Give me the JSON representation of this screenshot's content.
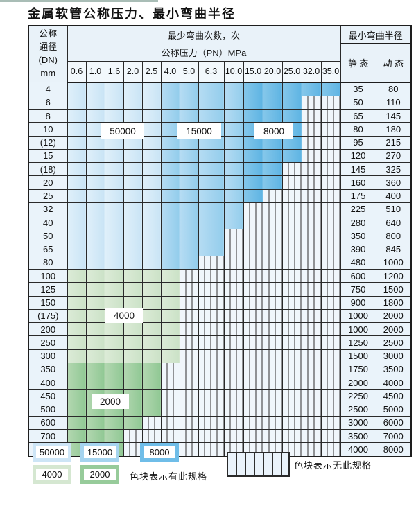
{
  "title": "金属软管公称压力、最小弯曲半径",
  "table": {
    "corner_header": "公称\n通径\n(DN)\nmm",
    "bend_cycles_header": "最少弯曲次数，次",
    "pressure_header": "公称压力（PN）MPa",
    "radius_header": "最小弯曲半径",
    "static_label": "静 态",
    "dynamic_label": "动 态",
    "pressure_columns": [
      "0.6",
      "1.0",
      "1.6",
      "2.0",
      "2.5",
      "4.0",
      "5.0",
      "6.3",
      "10.0",
      "15.0",
      "20.0",
      "25.0",
      "32.0",
      "35.0"
    ],
    "rows": [
      {
        "dn": "4",
        "last_colored": "35.0",
        "zone": "blue",
        "static": "35",
        "dynamic": "80"
      },
      {
        "dn": "6",
        "last_colored": "25.0",
        "zone": "blue",
        "static": "50",
        "dynamic": "110"
      },
      {
        "dn": "8",
        "last_colored": "25.0",
        "zone": "blue",
        "static": "65",
        "dynamic": "145"
      },
      {
        "dn": "10",
        "last_colored": "25.0",
        "zone": "blue",
        "static": "80",
        "dynamic": "180"
      },
      {
        "dn": "(12)",
        "last_colored": "25.0",
        "zone": "blue",
        "static": "95",
        "dynamic": "215"
      },
      {
        "dn": "15",
        "last_colored": "25.0",
        "zone": "blue",
        "static": "120",
        "dynamic": "270"
      },
      {
        "dn": "(18)",
        "last_colored": "20.0",
        "zone": "blue",
        "static": "145",
        "dynamic": "325"
      },
      {
        "dn": "20",
        "last_colored": "20.0",
        "zone": "blue",
        "static": "160",
        "dynamic": "360"
      },
      {
        "dn": "25",
        "last_colored": "15.0",
        "zone": "blue",
        "static": "175",
        "dynamic": "400"
      },
      {
        "dn": "32",
        "last_colored": "10.0",
        "zone": "blue",
        "static": "225",
        "dynamic": "510"
      },
      {
        "dn": "40",
        "last_colored": "10.0",
        "zone": "blue",
        "static": "280",
        "dynamic": "640"
      },
      {
        "dn": "50",
        "last_colored": "6.3",
        "zone": "blue",
        "static": "350",
        "dynamic": "800"
      },
      {
        "dn": "65",
        "last_colored": "6.3",
        "zone": "blue",
        "static": "390",
        "dynamic": "845"
      },
      {
        "dn": "80",
        "last_colored": "5.0",
        "zone": "blue",
        "static": "480",
        "dynamic": "1000"
      },
      {
        "dn": "100",
        "last_colored": "4.0",
        "zone": "green-4000",
        "static": "600",
        "dynamic": "1200"
      },
      {
        "dn": "125",
        "last_colored": "4.0",
        "zone": "green-4000",
        "static": "750",
        "dynamic": "1500"
      },
      {
        "dn": "150",
        "last_colored": "4.0",
        "zone": "green-4000",
        "static": "900",
        "dynamic": "1800"
      },
      {
        "dn": "(175)",
        "last_colored": "4.0",
        "zone": "green-4000",
        "static": "1000",
        "dynamic": "2000"
      },
      {
        "dn": "200",
        "last_colored": "4.0",
        "zone": "green-4000",
        "static": "1000",
        "dynamic": "2000"
      },
      {
        "dn": "250",
        "last_colored": "4.0",
        "zone": "green-4000",
        "static": "1250",
        "dynamic": "2500"
      },
      {
        "dn": "300",
        "last_colored": "4.0",
        "zone": "green-4000",
        "static": "1500",
        "dynamic": "3000"
      },
      {
        "dn": "350",
        "last_colored": "2.5",
        "zone": "green-2000",
        "static": "1750",
        "dynamic": "3500"
      },
      {
        "dn": "400",
        "last_colored": "2.5",
        "zone": "green-2000",
        "static": "2000",
        "dynamic": "4000"
      },
      {
        "dn": "450",
        "last_colored": "2.5",
        "zone": "green-2000",
        "static": "2250",
        "dynamic": "4500"
      },
      {
        "dn": "500",
        "last_colored": "2.5",
        "zone": "green-2000",
        "static": "2500",
        "dynamic": "5000"
      },
      {
        "dn": "600",
        "last_colored": "2.0",
        "zone": "green-2000",
        "static": "3000",
        "dynamic": "6000"
      },
      {
        "dn": "700",
        "last_colored": "1.6",
        "zone": "green-2000",
        "static": "3500",
        "dynamic": "7000"
      },
      {
        "dn": "800",
        "last_colored": "1.6",
        "zone": "green-2000",
        "static": "4000",
        "dynamic": "8000"
      }
    ]
  },
  "overlay_labels": [
    {
      "text": "50000"
    },
    {
      "text": "15000"
    },
    {
      "text": "8000"
    },
    {
      "text": "4000"
    },
    {
      "text": "2000"
    }
  ],
  "legend": {
    "items": [
      {
        "text": "50000",
        "color": "#cde5f6"
      },
      {
        "text": "15000",
        "color": "#a5d4ef"
      },
      {
        "text": "8000",
        "color": "#6fbde8"
      },
      {
        "text": "4000",
        "color": "#d5e7d1"
      },
      {
        "text": "2000",
        "color": "#97cb9a"
      }
    ],
    "has_spec_text": "色块表示有此规格",
    "no_spec_text": "色块表示无此规格"
  },
  "colors": {
    "blue_50000_zone": "#cde5f6",
    "blue_15000_zone": "#a5d4ef",
    "blue_8000_zone": "#6fbde8",
    "green_4000_zone": "#d5e7d1",
    "green_2000_zone": "#97cb9a",
    "no_spec_fill": "#f0f6fb"
  },
  "chart_data": {
    "type": "heatmap",
    "title": "金属软管公称压力、最小弯曲半径",
    "x_label": "公称压力（PN）MPa",
    "y_label": "公称通径 (DN) mm",
    "columns_pn_mpa": [
      0.6,
      1.0,
      1.6,
      2.0,
      2.5,
      4.0,
      5.0,
      6.3,
      10.0,
      15.0,
      20.0,
      25.0,
      32.0,
      35.0
    ],
    "rows": [
      {
        "dn": "4",
        "max_pn": 35.0,
        "static_radius": 35,
        "dynamic_radius": 80
      },
      {
        "dn": "6",
        "max_pn": 25.0,
        "static_radius": 50,
        "dynamic_radius": 110
      },
      {
        "dn": "8",
        "max_pn": 25.0,
        "static_radius": 65,
        "dynamic_radius": 145
      },
      {
        "dn": "10",
        "max_pn": 25.0,
        "static_radius": 80,
        "dynamic_radius": 180
      },
      {
        "dn": "(12)",
        "max_pn": 25.0,
        "static_radius": 95,
        "dynamic_radius": 215
      },
      {
        "dn": "15",
        "max_pn": 25.0,
        "static_radius": 120,
        "dynamic_radius": 270
      },
      {
        "dn": "(18)",
        "max_pn": 20.0,
        "static_radius": 145,
        "dynamic_radius": 325
      },
      {
        "dn": "20",
        "max_pn": 20.0,
        "static_radius": 160,
        "dynamic_radius": 360
      },
      {
        "dn": "25",
        "max_pn": 15.0,
        "static_radius": 175,
        "dynamic_radius": 400
      },
      {
        "dn": "32",
        "max_pn": 10.0,
        "static_radius": 225,
        "dynamic_radius": 510
      },
      {
        "dn": "40",
        "max_pn": 10.0,
        "static_radius": 280,
        "dynamic_radius": 640
      },
      {
        "dn": "50",
        "max_pn": 6.3,
        "static_radius": 350,
        "dynamic_radius": 800
      },
      {
        "dn": "65",
        "max_pn": 6.3,
        "static_radius": 390,
        "dynamic_radius": 845
      },
      {
        "dn": "80",
        "max_pn": 5.0,
        "static_radius": 480,
        "dynamic_radius": 1000
      },
      {
        "dn": "100",
        "max_pn": 4.0,
        "static_radius": 600,
        "dynamic_radius": 1200
      },
      {
        "dn": "125",
        "max_pn": 4.0,
        "static_radius": 750,
        "dynamic_radius": 1500
      },
      {
        "dn": "150",
        "max_pn": 4.0,
        "static_radius": 900,
        "dynamic_radius": 1800
      },
      {
        "dn": "(175)",
        "max_pn": 4.0,
        "static_radius": 1000,
        "dynamic_radius": 2000
      },
      {
        "dn": "200",
        "max_pn": 4.0,
        "static_radius": 1000,
        "dynamic_radius": 2000
      },
      {
        "dn": "250",
        "max_pn": 4.0,
        "static_radius": 1250,
        "dynamic_radius": 2500
      },
      {
        "dn": "300",
        "max_pn": 4.0,
        "static_radius": 1500,
        "dynamic_radius": 3000
      },
      {
        "dn": "350",
        "max_pn": 2.5,
        "static_radius": 1750,
        "dynamic_radius": 3500
      },
      {
        "dn": "400",
        "max_pn": 2.5,
        "static_radius": 2000,
        "dynamic_radius": 4000
      },
      {
        "dn": "450",
        "max_pn": 2.5,
        "static_radius": 2250,
        "dynamic_radius": 4500
      },
      {
        "dn": "500",
        "max_pn": 2.5,
        "static_radius": 2500,
        "dynamic_radius": 5000
      },
      {
        "dn": "600",
        "max_pn": 2.0,
        "static_radius": 3000,
        "dynamic_radius": 6000
      },
      {
        "dn": "700",
        "max_pn": 1.6,
        "static_radius": 3500,
        "dynamic_radius": 7000
      },
      {
        "dn": "800",
        "max_pn": 1.6,
        "static_radius": 4000,
        "dynamic_radius": 8000
      }
    ],
    "bend_cycle_zones": {
      "blue_rows_dn_4_to_80": {
        "50000": "PN 0.6–2.5",
        "15000": "PN 4.0–10.0",
        "8000": "PN 15.0 and above"
      },
      "green_rows": {
        "4000": "DN 100–300 (all colored cells)",
        "2000": "DN 350–800 (all colored cells)"
      }
    },
    "legend_note_has_spec": "色块表示有此规格",
    "legend_note_no_spec": "色块表示无此规格"
  }
}
